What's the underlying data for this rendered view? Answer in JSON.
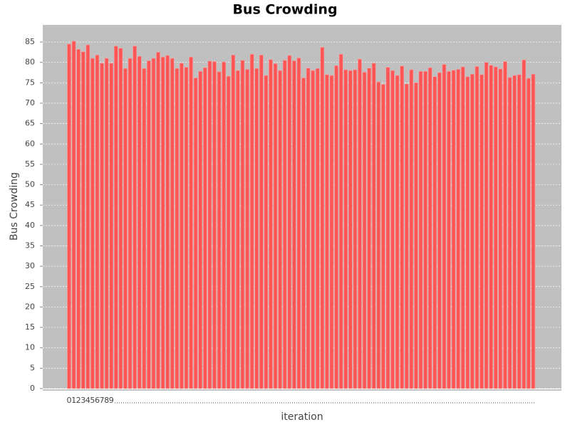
{
  "chart_data": {
    "type": "bar",
    "title": "Bus Crowding",
    "x_label": "iteration",
    "y_label": "Bus Crowding",
    "categories": [
      "0",
      "1",
      "2",
      "3",
      "4",
      "5",
      "6",
      "7",
      "8",
      "9",
      null,
      null,
      null,
      null,
      null,
      null,
      null,
      null,
      null,
      null,
      null,
      null,
      null,
      null,
      null,
      null,
      null,
      null,
      null,
      null,
      null,
      null,
      null,
      null,
      null,
      null,
      null,
      null,
      null,
      null,
      null,
      null,
      null,
      null,
      null,
      null,
      null,
      null,
      null,
      null,
      null,
      null,
      null,
      null,
      null,
      null,
      null,
      null,
      null,
      null,
      null,
      null,
      null,
      null,
      null,
      null,
      null,
      null,
      null,
      null,
      null,
      null,
      null,
      null,
      null,
      null,
      null,
      null,
      null,
      null,
      null,
      null,
      null,
      null,
      null,
      null,
      null,
      null,
      null,
      null,
      null,
      null,
      null,
      null,
      null,
      null,
      null,
      null,
      null,
      null
    ],
    "values": [
      84.5,
      85.2,
      83.2,
      82.6,
      84.3,
      81,
      81.8,
      79.8,
      81,
      79.8,
      84,
      83.5,
      78.5,
      81,
      84,
      81.5,
      78.5,
      80.4,
      81,
      82.5,
      81.3,
      81.7,
      81,
      78.5,
      79.8,
      78.8,
      81.3,
      76.2,
      77.8,
      78.7,
      80.3,
      80.2,
      77.7,
      80.1,
      76.6,
      81.8,
      78,
      80.5,
      78.3,
      82,
      78.5,
      81.8,
      76.8,
      80.7,
      79.7,
      78,
      80.5,
      81.7,
      80.4,
      81.1,
      76.2,
      78.6,
      78,
      78.5,
      83.7,
      77,
      76.8,
      79.2,
      82,
      78.2,
      78,
      78.2,
      80.8,
      77.6,
      78.6,
      79.8,
      75.2,
      74.6,
      78.8,
      78,
      76.8,
      79.1,
      74.7,
      78.2,
      75,
      77.8,
      77.8,
      78.7,
      76.5,
      77.5,
      79.5,
      77.8,
      78.1,
      78.3,
      78.9,
      76.5,
      77.1,
      79,
      77,
      80,
      79.3,
      78.9,
      78.4,
      80.2,
      76.3,
      76.8,
      77,
      80.6,
      76.1,
      77.1
    ],
    "color": "#ff5555",
    "ylim": [
      0,
      89.2
    ],
    "yticks": [
      0,
      5,
      10,
      15,
      20,
      25,
      30,
      35,
      40,
      45,
      50,
      55,
      60,
      65,
      70,
      75,
      80,
      85
    ],
    "grid": true
  }
}
